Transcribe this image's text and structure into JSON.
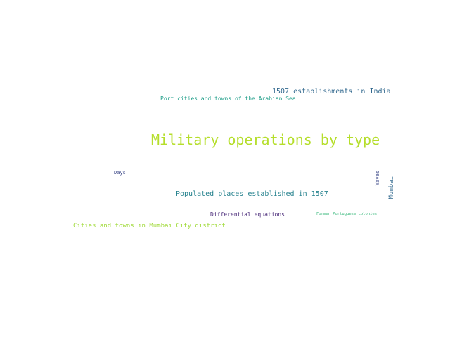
{
  "words": [
    {
      "text": "Military operations by type",
      "color": "#b5de2b"
    },
    {
      "text": "1507 establishments in India",
      "color": "#31688e"
    },
    {
      "text": "Port cities and towns of the Arabian Sea",
      "color": "#1f9e89"
    },
    {
      "text": "Days",
      "color": "#3e4a89"
    },
    {
      "text": "Populated places established in 1507",
      "color": "#26828e"
    },
    {
      "text": "Differential equations",
      "color": "#482878"
    },
    {
      "text": "Former Portuguese colonies",
      "color": "#35b779"
    },
    {
      "text": "Cities and towns in Mumbai City district",
      "color": "#a0da39"
    },
    {
      "text": "Waves",
      "color": "#3e4a89"
    },
    {
      "text": "Mumbai",
      "color": "#31688e"
    }
  ]
}
